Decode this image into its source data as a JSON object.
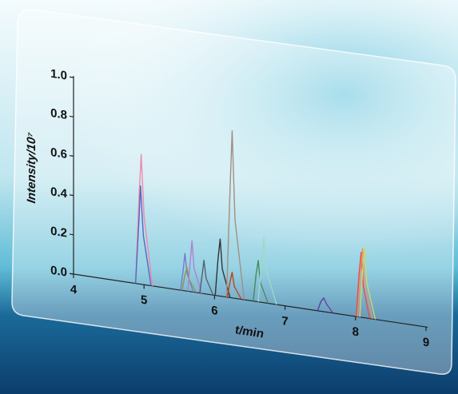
{
  "chart_data": {
    "type": "line",
    "x_label": "t/min",
    "y_label": "Intensity/10⁷",
    "xlim": [
      4,
      9
    ],
    "xticks": [
      4,
      5,
      6,
      7,
      8,
      9
    ],
    "ylim": [
      0,
      1
    ],
    "yticks": [
      {
        "value": 0,
        "label": "0.0"
      },
      0.2,
      0.4,
      0.6,
      0.8,
      {
        "value": 1,
        "label": "1.0"
      }
    ],
    "series": [
      {
        "color": "#f08aa8",
        "x": [
          4.88,
          4.93,
          4.96,
          5.0,
          5.12
        ],
        "values": [
          0,
          0.45,
          0.66,
          0.35,
          0
        ]
      },
      {
        "color": "#5a64c4",
        "x": [
          4.88,
          4.93,
          4.95,
          4.99,
          5.1
        ],
        "values": [
          0,
          0.34,
          0.5,
          0.25,
          0
        ]
      },
      {
        "color": "#7a7ad0",
        "x": [
          5.52,
          5.56,
          5.58,
          5.61,
          5.7
        ],
        "values": [
          0,
          0.12,
          0.19,
          0.09,
          0
        ]
      },
      {
        "color": "#8a9a50",
        "x": [
          5.54,
          5.58,
          5.61,
          5.64,
          5.74
        ],
        "values": [
          0,
          0.08,
          0.12,
          0.06,
          0
        ]
      },
      {
        "color": "#b080d0",
        "x": [
          5.62,
          5.66,
          5.68,
          5.71,
          5.82
        ],
        "values": [
          0,
          0.17,
          0.26,
          0.12,
          0
        ]
      },
      {
        "color": "#556070",
        "x": [
          5.79,
          5.83,
          5.85,
          5.88,
          5.98
        ],
        "values": [
          0,
          0.11,
          0.17,
          0.08,
          0
        ]
      },
      {
        "color": "#333333",
        "x": [
          6.01,
          6.05,
          6.08,
          6.11,
          6.22
        ],
        "values": [
          0,
          0.19,
          0.29,
          0.14,
          0
        ]
      },
      {
        "color": "#a09080",
        "x": [
          6.17,
          6.22,
          6.25,
          6.29,
          6.42
        ],
        "values": [
          0,
          0.55,
          0.85,
          0.4,
          0
        ]
      },
      {
        "color": "#c04020",
        "x": [
          6.18,
          6.22,
          6.25,
          6.28,
          6.38
        ],
        "values": [
          0,
          0.08,
          0.13,
          0.06,
          0
        ]
      },
      {
        "color": "#4a8a60",
        "x": [
          6.55,
          6.59,
          6.62,
          6.65,
          6.76
        ],
        "values": [
          0,
          0.14,
          0.21,
          0.1,
          0
        ]
      },
      {
        "color": "#a0d8c8",
        "x": [
          6.62,
          6.67,
          6.7,
          6.74,
          6.88
        ],
        "values": [
          0,
          0.22,
          0.33,
          0.16,
          0
        ]
      },
      {
        "color": "#6040a0",
        "x": [
          7.46,
          7.51,
          7.55,
          7.59,
          7.68
        ],
        "values": [
          0,
          0.05,
          0.07,
          0.04,
          0
        ]
      },
      {
        "color": "#e05050",
        "x": [
          8.01,
          8.05,
          8.08,
          8.11,
          8.2
        ],
        "values": [
          0,
          0.22,
          0.33,
          0.16,
          0
        ]
      },
      {
        "color": "#f09060",
        "x": [
          8.03,
          8.07,
          8.1,
          8.13,
          8.24
        ],
        "values": [
          0,
          0.23,
          0.35,
          0.17,
          0
        ]
      },
      {
        "color": "#c8d870",
        "x": [
          8.06,
          8.1,
          8.13,
          8.16,
          8.28
        ],
        "values": [
          0,
          0.24,
          0.36,
          0.18,
          0
        ]
      }
    ]
  }
}
